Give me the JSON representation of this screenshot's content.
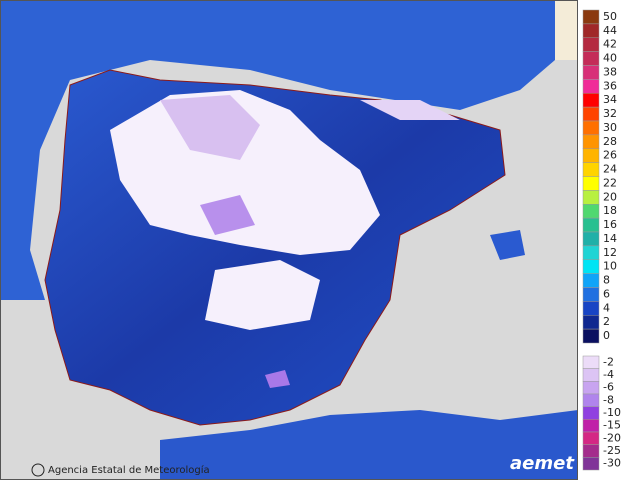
{
  "credit": "Agencia Estatal de Meteorología",
  "logo": "aemet",
  "legend": {
    "entries": [
      {
        "label": "50",
        "color": "#8b3a10"
      },
      {
        "label": "44",
        "color": "#a02828"
      },
      {
        "label": "42",
        "color": "#b42a40"
      },
      {
        "label": "40",
        "color": "#c42c58"
      },
      {
        "label": "38",
        "color": "#d83078"
      },
      {
        "label": "36",
        "color": "#f02c98"
      },
      {
        "label": "34",
        "color": "#ff0000"
      },
      {
        "label": "32",
        "color": "#ff4400"
      },
      {
        "label": "30",
        "color": "#ff7000"
      },
      {
        "label": "28",
        "color": "#ff9400"
      },
      {
        "label": "26",
        "color": "#ffb400"
      },
      {
        "label": "24",
        "color": "#ffd400"
      },
      {
        "label": "22",
        "color": "#ffff00"
      },
      {
        "label": "20",
        "color": "#b8f040"
      },
      {
        "label": "18",
        "color": "#50d870"
      },
      {
        "label": "16",
        "color": "#28c090"
      },
      {
        "label": "14",
        "color": "#20b0a8"
      },
      {
        "label": "12",
        "color": "#20d4d4"
      },
      {
        "label": "10",
        "color": "#00e4f4"
      },
      {
        "label": "8",
        "color": "#10a4f8"
      },
      {
        "label": "6",
        "color": "#2070e0"
      },
      {
        "label": "4",
        "color": "#1844c4"
      },
      {
        "label": "2",
        "color": "#102890"
      },
      {
        "label": "0",
        "color": "#0a1060"
      }
    ],
    "negative_entries": [
      {
        "label": "-2",
        "color": "#ecdcf8"
      },
      {
        "label": "-4",
        "color": "#dcc4f4"
      },
      {
        "label": "-6",
        "color": "#c8a4f0"
      },
      {
        "label": "-8",
        "color": "#b084ec"
      },
      {
        "label": "-10",
        "color": "#9040e0"
      },
      {
        "label": "-15",
        "color": "#c020a8"
      },
      {
        "label": "-20",
        "color": "#d42884"
      },
      {
        "label": "-25",
        "color": "#a42c8c"
      },
      {
        "label": "-30",
        "color": "#803498"
      }
    ]
  }
}
